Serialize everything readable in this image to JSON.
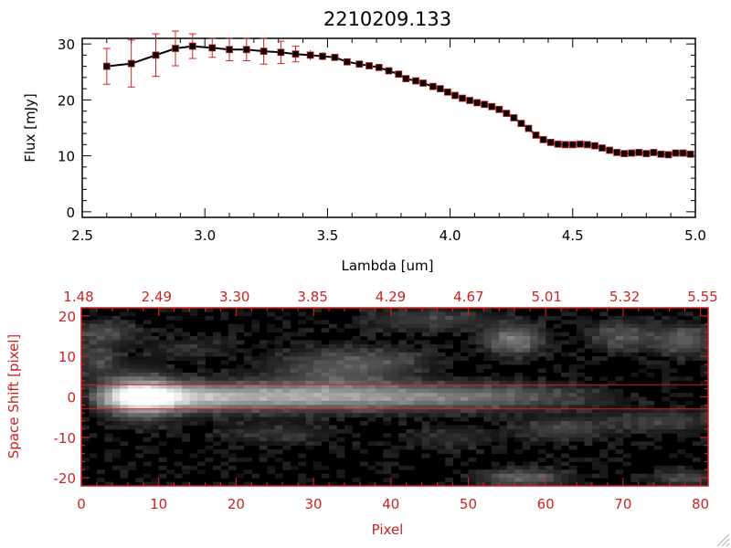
{
  "chart_data": [
    {
      "type": "line",
      "title": "2210209.133",
      "xlabel": "Lambda [um]",
      "ylabel": "Flux [mJy]",
      "xlim": [
        2.5,
        5.0
      ],
      "ylim": [
        -1,
        31
      ],
      "x_ticks": [
        "2.5",
        "3.0",
        "3.5",
        "4.0",
        "4.5",
        "5.0"
      ],
      "y_ticks": [
        "0",
        "10",
        "20",
        "30"
      ],
      "grid": false,
      "colors": {
        "line": "#000000",
        "marker": "#000000",
        "marker_edge": "#cc2222",
        "errorbar": "#cc2222"
      },
      "x": [
        2.6,
        2.7,
        2.8,
        2.88,
        2.95,
        3.03,
        3.1,
        3.17,
        3.24,
        3.31,
        3.37,
        3.43,
        3.48,
        3.53,
        3.58,
        3.63,
        3.67,
        3.71,
        3.75,
        3.79,
        3.82,
        3.86,
        3.89,
        3.93,
        3.96,
        3.99,
        4.02,
        4.05,
        4.08,
        4.11,
        4.14,
        4.17,
        4.2,
        4.23,
        4.26,
        4.29,
        4.32,
        4.35,
        4.38,
        4.41,
        4.44,
        4.47,
        4.5,
        4.53,
        4.56,
        4.59,
        4.62,
        4.65,
        4.68,
        4.71,
        4.74,
        4.77,
        4.8,
        4.83,
        4.86,
        4.89,
        4.92,
        4.95,
        4.98
      ],
      "y": [
        26.0,
        26.5,
        28.0,
        29.2,
        29.6,
        29.3,
        29.0,
        29.0,
        28.7,
        28.5,
        28.2,
        28.0,
        27.8,
        27.6,
        26.8,
        26.4,
        26.1,
        25.8,
        25.2,
        24.6,
        23.8,
        23.4,
        23.0,
        22.4,
        22.0,
        21.4,
        20.8,
        20.3,
        19.9,
        19.5,
        19.2,
        18.8,
        18.3,
        17.6,
        16.8,
        15.8,
        14.9,
        13.7,
        12.9,
        12.4,
        12.1,
        12.0,
        12.0,
        12.1,
        12.0,
        11.8,
        11.4,
        11.0,
        10.6,
        10.4,
        10.5,
        10.6,
        10.4,
        10.6,
        10.3,
        10.2,
        10.5,
        10.5,
        10.3
      ],
      "yerr": [
        3.2,
        4.2,
        3.8,
        3.1,
        2.2,
        1.7,
        2.0,
        2.0,
        2.3,
        2.0,
        1.4,
        0.9,
        0.7,
        0.6,
        0.5,
        0.5,
        0.5,
        0.4,
        0.4,
        0.4,
        0.4,
        0.4,
        0.4,
        0.4,
        0.4,
        0.4,
        0.4,
        0.4,
        0.4,
        0.4,
        0.4,
        0.4,
        0.4,
        0.4,
        0.4,
        0.4,
        0.4,
        0.4,
        0.4,
        0.4,
        0.4,
        0.4,
        0.4,
        0.4,
        0.4,
        0.4,
        0.4,
        0.4,
        0.4,
        0.4,
        0.4,
        0.4,
        0.4,
        0.4,
        0.4,
        0.4,
        0.4,
        0.4,
        0.4
      ]
    },
    {
      "type": "heatmap",
      "xlabel": "Pixel",
      "ylabel": "Space Shift [pixel]",
      "xlim": [
        0,
        81
      ],
      "ylim": [
        -22,
        22
      ],
      "x_ticks": [
        "0",
        "10",
        "20",
        "30",
        "40",
        "50",
        "60",
        "70",
        "80"
      ],
      "y_ticks": [
        "20",
        "10",
        "0",
        "-10",
        "-20"
      ],
      "top_ticks": [
        "1.48",
        "2.49",
        "3.30",
        "3.85",
        "4.29",
        "4.67",
        "5.01",
        "5.32",
        "5.55"
      ],
      "aperture_lines": [
        3,
        -3
      ],
      "colors": {
        "frame": "#cc2222",
        "axis_text": "#cc2222",
        "aperture": "#cc2222",
        "background": "#000000"
      },
      "trace": {
        "center": 0,
        "peak_pixel": 8,
        "profile": [
          [
            0,
            0.0
          ],
          [
            3,
            0.45
          ],
          [
            6,
            0.95
          ],
          [
            8,
            1.0
          ],
          [
            11,
            0.9
          ],
          [
            15,
            0.72
          ],
          [
            22,
            0.62
          ],
          [
            30,
            0.58
          ],
          [
            40,
            0.5
          ],
          [
            50,
            0.4
          ],
          [
            55,
            0.32
          ],
          [
            60,
            0.22
          ],
          [
            65,
            0.14
          ],
          [
            70,
            0.05
          ],
          [
            75,
            0.0
          ]
        ]
      },
      "blobs": [
        {
          "px": 33,
          "s": 7,
          "w": 6,
          "h": 3.5,
          "v": 0.25
        },
        {
          "px": 56,
          "s": 14,
          "w": 2.5,
          "h": 2.5,
          "v": 0.4
        },
        {
          "px": 70,
          "s": 15,
          "w": 3,
          "h": 2.5,
          "v": 0.25
        },
        {
          "px": 78,
          "s": 14,
          "w": 2.5,
          "h": 2.5,
          "v": 0.3
        },
        {
          "px": 45,
          "s": 19,
          "w": 6,
          "h": 2,
          "v": 0.18
        },
        {
          "px": 2,
          "s": 9,
          "w": 2,
          "h": 3,
          "v": 0.2
        },
        {
          "px": 3,
          "s": 16,
          "w": 3,
          "h": 2,
          "v": 0.22
        },
        {
          "px": 62,
          "s": -8,
          "w": 4,
          "h": 2,
          "v": 0.2
        },
        {
          "px": 75,
          "s": -6,
          "w": 5,
          "h": 2,
          "v": 0.18
        },
        {
          "px": 57,
          "s": -20,
          "w": 4,
          "h": 1.5,
          "v": 0.3
        },
        {
          "px": 78,
          "s": -20,
          "w": 3,
          "h": 1.5,
          "v": 0.2
        },
        {
          "px": 25,
          "s": -9,
          "w": 6,
          "h": 2,
          "v": 0.12
        },
        {
          "px": 48,
          "s": -10,
          "w": 4,
          "h": 2,
          "v": 0.12
        },
        {
          "px": 40,
          "s": 9,
          "w": 4,
          "h": 2,
          "v": 0.12
        },
        {
          "px": 14,
          "s": 12,
          "w": 4,
          "h": 2,
          "v": 0.1
        }
      ]
    }
  ]
}
